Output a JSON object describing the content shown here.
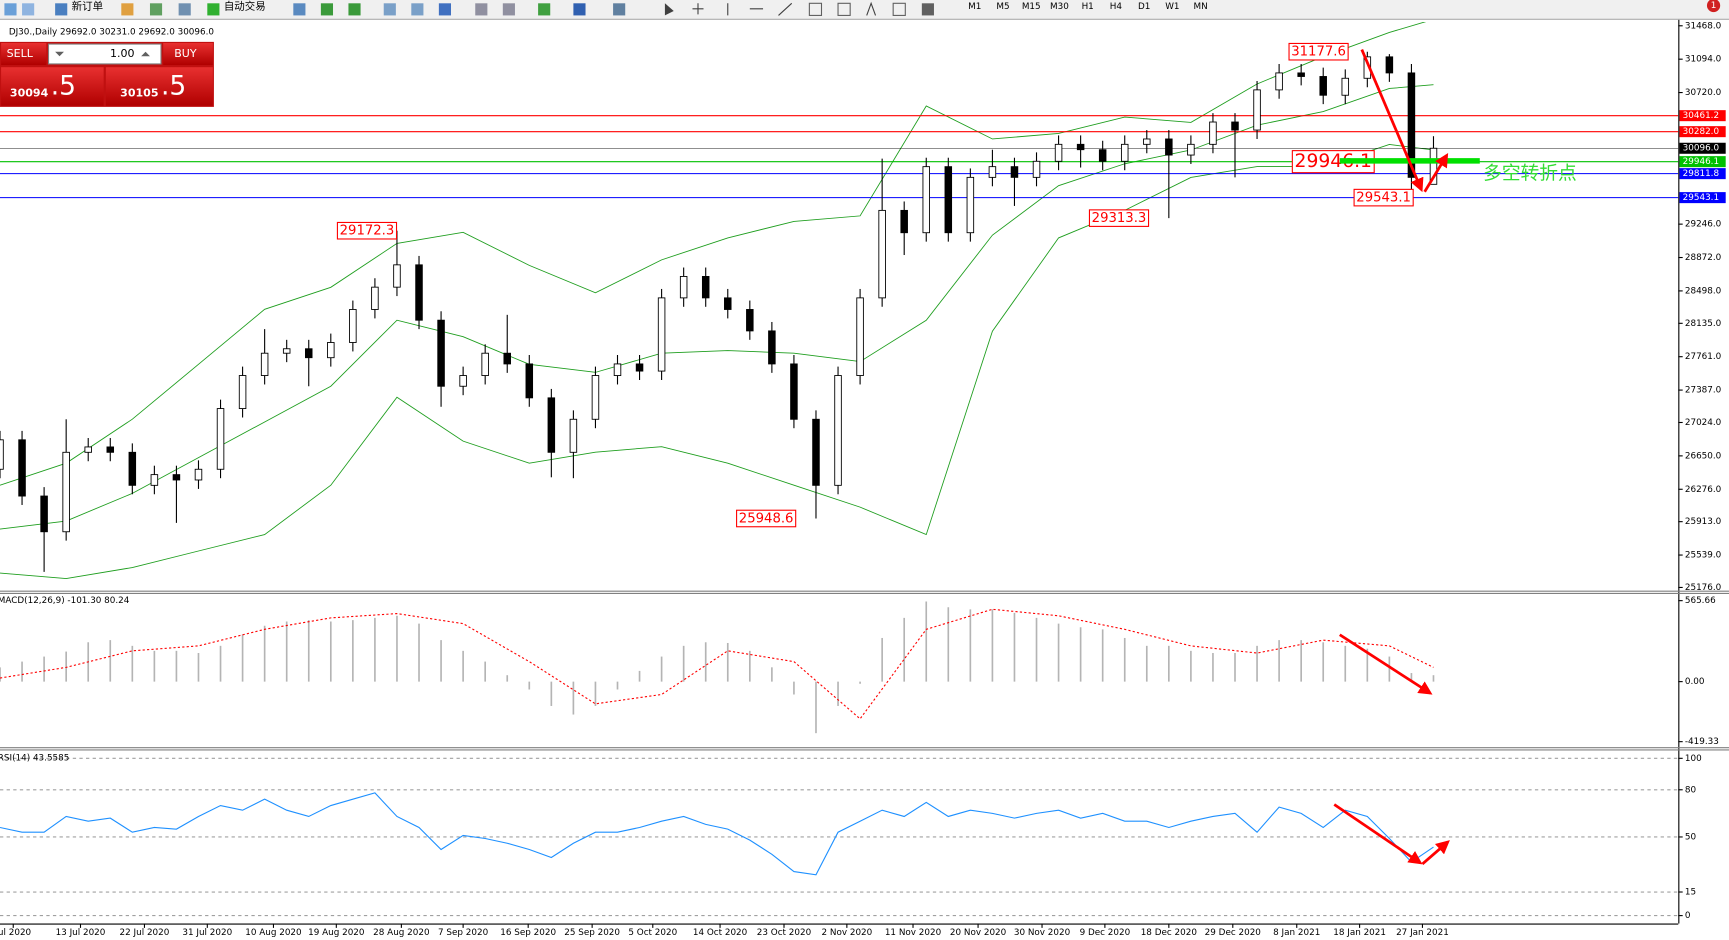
{
  "toolbar": {
    "new_order": "新订单",
    "auto_trading": "自动交易",
    "timeframes": [
      "M1",
      "M5",
      "M15",
      "M30",
      "H1",
      "H4",
      "D1",
      "W1",
      "MN"
    ],
    "notifications": "1"
  },
  "trade_panel": {
    "sell": "SELL",
    "buy": "BUY",
    "volume": "1.00",
    "sell_price_main": "30094",
    "sell_price_pips": ".5",
    "buy_price_main": "30105",
    "buy_price_pips": ".5"
  },
  "chart_data": [
    {
      "type": "candlestick",
      "title": "DJ30.,Daily 29692.0 30231.0 29692.0 30096.0",
      "open": [
        26500,
        26830,
        26200,
        25800,
        26690,
        26750,
        26690,
        26320,
        26440,
        26380,
        26500,
        27180,
        27550,
        27800,
        27850,
        27750,
        27920,
        28290,
        28540,
        28790,
        28170,
        27430,
        27550,
        27800,
        27680,
        27300,
        26690,
        27060,
        27550,
        27680,
        27600,
        28420,
        28660,
        28420,
        28290,
        28050,
        27680,
        27060,
        26320,
        27550,
        28420,
        29400,
        29150,
        29890,
        29150,
        29770,
        29890,
        29770,
        29950,
        30140,
        30080,
        29950,
        30140,
        30200,
        30020,
        30140,
        30390,
        30300,
        30750,
        30940,
        30900,
        30690,
        30880,
        31120,
        30940,
        29692
      ],
      "high": [
        26930,
        26930,
        26300,
        27060,
        26850,
        26850,
        26790,
        26540,
        26540,
        26600,
        27280,
        27650,
        28070,
        27950,
        27950,
        28020,
        28390,
        28640,
        29172.3,
        28890,
        28270,
        27650,
        27900,
        28230,
        27780,
        27400,
        27160,
        27650,
        27780,
        27780,
        28520,
        28760,
        28760,
        28520,
        28390,
        28150,
        27780,
        27160,
        27650,
        28520,
        29980,
        29500,
        29990,
        29990,
        29870,
        30080,
        29990,
        30050,
        30240,
        30240,
        30180,
        30240,
        30300,
        30300,
        30240,
        30490,
        30490,
        30850,
        31040,
        31040,
        31000,
        30980,
        31177.6,
        31150,
        31040,
        30231
      ],
      "low": [
        26400,
        26100,
        25350,
        25700,
        26590,
        26590,
        26220,
        26220,
        25900,
        26280,
        26400,
        27080,
        27450,
        27700,
        27430,
        27650,
        27820,
        28190,
        28440,
        28070,
        27200,
        27330,
        27450,
        27580,
        27200,
        26410,
        26400,
        26960,
        27450,
        27500,
        27500,
        28320,
        28320,
        28190,
        27950,
        27580,
        26960,
        25948.6,
        26220,
        27450,
        28320,
        28900,
        29050,
        29050,
        29050,
        29670,
        29450,
        29670,
        29850,
        29880,
        29850,
        29850,
        30040,
        29313.3,
        29920,
        30040,
        29770,
        30200,
        30650,
        30800,
        30590,
        30590,
        30780,
        30840,
        29543.1,
        29692
      ],
      "close": [
        26830,
        26200,
        25800,
        26690,
        26750,
        26690,
        26320,
        26440,
        26380,
        26500,
        27180,
        27550,
        27800,
        27850,
        27750,
        27920,
        28290,
        28540,
        28790,
        28170,
        27430,
        27550,
        27800,
        27680,
        27300,
        26690,
        27060,
        27550,
        27680,
        27600,
        28420,
        28660,
        28420,
        28290,
        28050,
        27680,
        27060,
        26320,
        27550,
        28420,
        29400,
        29150,
        29890,
        29150,
        29770,
        29890,
        29770,
        29950,
        30140,
        30080,
        29950,
        30140,
        30200,
        30020,
        30140,
        30390,
        30300,
        30750,
        30940,
        30900,
        30690,
        30880,
        31120,
        30940,
        29770,
        30096
      ],
      "bands": {
        "color": "#1f9e1f",
        "x": [
          0,
          3,
          6,
          9,
          12,
          15,
          18,
          21,
          24,
          27,
          30,
          33,
          36,
          39,
          42,
          45,
          48,
          51,
          54,
          57,
          60,
          63,
          65
        ],
        "upper": [
          26322,
          26568,
          27061,
          27676,
          28292,
          28538,
          29030,
          29154,
          28784,
          28477,
          28846,
          29092,
          29277,
          29338,
          30569,
          30200,
          30262,
          30446,
          30385,
          30816,
          31124,
          31394,
          31540
        ],
        "middle": [
          25830,
          25920,
          26230,
          26630,
          27030,
          27430,
          28170,
          27985,
          27676,
          27585,
          27800,
          27830,
          27800,
          27707,
          28170,
          29123,
          29677,
          29923,
          30077,
          30354,
          30508,
          30766,
          30808
        ],
        "lower": [
          25338,
          25276,
          25399,
          25584,
          25768,
          26322,
          27307,
          26815,
          26568,
          26692,
          26753,
          26568,
          26322,
          26076,
          25768,
          28046,
          29092,
          29400,
          29769,
          29892,
          29892,
          30139,
          30077
        ]
      },
      "xlim": [
        0,
        76.1
      ],
      "ylim": [
        25140,
        31510
      ],
      "yticks": [
        {
          "value": 31468,
          "label": "31468.0"
        },
        {
          "value": 31094,
          "label": "31094.0"
        },
        {
          "value": 30720,
          "label": "30720.0"
        },
        {
          "value": 29246,
          "label": "29246.0"
        },
        {
          "value": 28872,
          "label": "28872.0"
        },
        {
          "value": 28498,
          "label": "28498.0"
        },
        {
          "value": 28135,
          "label": "28135.0"
        },
        {
          "value": 27761,
          "label": "27761.0"
        },
        {
          "value": 27387,
          "label": "27387.0"
        },
        {
          "value": 27024,
          "label": "27024.0"
        },
        {
          "value": 26650,
          "label": "26650.0"
        },
        {
          "value": 26276,
          "label": "26276.0"
        },
        {
          "value": 25913,
          "label": "25913.0"
        },
        {
          "value": 25539,
          "label": "25539.0"
        },
        {
          "value": 25176,
          "label": "25176.0"
        }
      ],
      "levels": [
        {
          "value": 30461.2,
          "color": "#ff0000"
        },
        {
          "value": 30282,
          "label": "30282.0",
          "color": "#ff0000"
        },
        {
          "value": 30096,
          "label": "30096.0",
          "color": "#000000"
        },
        {
          "value": 29946.1,
          "color": "#00c000"
        },
        {
          "value": 29811.8,
          "color": "#0000ff"
        },
        {
          "value": 29543.1,
          "color": "#0000ff"
        }
      ],
      "annotations": [
        {
          "value": 31177.6
        },
        {
          "value": 29946.1
        },
        {
          "value": 29543.1
        },
        {
          "value": 29313.3
        },
        {
          "value": 29172.3
        },
        {
          "value": 25948.6
        }
      ],
      "note": "多空转折点"
    },
    {
      "type": "bar",
      "title": "MACD(12,26,9) -101.30 80.24",
      "color": "#b4b4b4",
      "values": [
        100,
        140,
        175,
        210,
        275,
        290,
        250,
        215,
        215,
        200,
        250,
        330,
        390,
        420,
        430,
        420,
        430,
        445,
        460,
        405,
        290,
        215,
        140,
        45,
        -55,
        -170,
        -230,
        -170,
        -55,
        75,
        175,
        250,
        275,
        270,
        215,
        100,
        -90,
        -360,
        -170,
        -15,
        305,
        445,
        560,
        520,
        505,
        505,
        480,
        445,
        405,
        380,
        365,
        305,
        250,
        250,
        215,
        200,
        200,
        250,
        290,
        290,
        275,
        250,
        230,
        175,
        60,
        45
      ],
      "signal": {
        "color": "#ff0000",
        "x": [
          0,
          3,
          6,
          9,
          12,
          15,
          18,
          21,
          24,
          27,
          30,
          33,
          36,
          39,
          42,
          45,
          48,
          51,
          54,
          57,
          60,
          63,
          65
        ],
        "values": [
          25,
          100,
          215,
          250,
          365,
          445,
          475,
          405,
          140,
          -155,
          -90,
          215,
          140,
          -260,
          365,
          505,
          460,
          365,
          250,
          200,
          290,
          250,
          100
        ]
      },
      "xlim": [
        0,
        76.1
      ],
      "ylim": [
        -450,
        620
      ],
      "yticks": [
        565.66,
        {
          "value": 0,
          "label": "0.00"
        },
        -419.33
      ]
    },
    {
      "type": "line",
      "title": "RSI(14) 43.5585",
      "color": "#1e90ff",
      "values": [
        56,
        53,
        53,
        63,
        60,
        62,
        53,
        56,
        55,
        63,
        70,
        67,
        74,
        67,
        63,
        70,
        74,
        78,
        63,
        56,
        42,
        51,
        49,
        46,
        42,
        37,
        46,
        53,
        53,
        56,
        60,
        63,
        58,
        55,
        48,
        39,
        28,
        26,
        53,
        60,
        67,
        63,
        72,
        63,
        67,
        65,
        62,
        65,
        67,
        62,
        65,
        60,
        60,
        56,
        60,
        63,
        65,
        53,
        69,
        65,
        56,
        67,
        63,
        49,
        34,
        43.5585
      ],
      "xlim": [
        0,
        76.1
      ],
      "ylim": [
        -5,
        105
      ],
      "yticks": [
        100,
        80,
        50,
        15,
        0
      ],
      "xticks": [
        {
          "value": 0.6,
          "label": "Jul 2020"
        },
        {
          "value": 3.65,
          "label": "13 Jul 2020"
        },
        {
          "value": 6.55,
          "label": "22 Jul 2020"
        },
        {
          "value": 9.4,
          "label": "31 Jul 2020"
        },
        {
          "value": 12.4,
          "label": "10 Aug 2020"
        },
        {
          "value": 15.25,
          "label": "19 Aug 2020"
        },
        {
          "value": 18.2,
          "label": "28 Aug 2020"
        },
        {
          "value": 21,
          "label": "7 Sep 2020"
        },
        {
          "value": 23.95,
          "label": "16 Sep 2020"
        },
        {
          "value": 26.85,
          "label": "25 Sep 2020"
        },
        {
          "value": 29.6,
          "label": "5 Oct 2020"
        },
        {
          "value": 32.65,
          "label": "14 Oct 2020"
        },
        {
          "value": 35.55,
          "label": "23 Oct 2020"
        },
        {
          "value": 38.4,
          "label": "2 Nov 2020"
        },
        {
          "value": 41.4,
          "label": "11 Nov 2020"
        },
        {
          "value": 44.35,
          "label": "20 Nov 2020"
        },
        {
          "value": 47.25,
          "label": "30 Nov 2020"
        },
        {
          "value": 50.1,
          "label": "9 Dec 2020"
        },
        {
          "value": 53,
          "label": "18 Dec 2020"
        },
        {
          "value": 55.9,
          "label": "29 Dec 2020"
        },
        {
          "value": 58.8,
          "label": "8 Jan 2021"
        },
        {
          "value": 61.65,
          "label": "18 Jan 2021"
        },
        {
          "value": 64.5,
          "label": "27 Jan 2021"
        }
      ]
    }
  ]
}
